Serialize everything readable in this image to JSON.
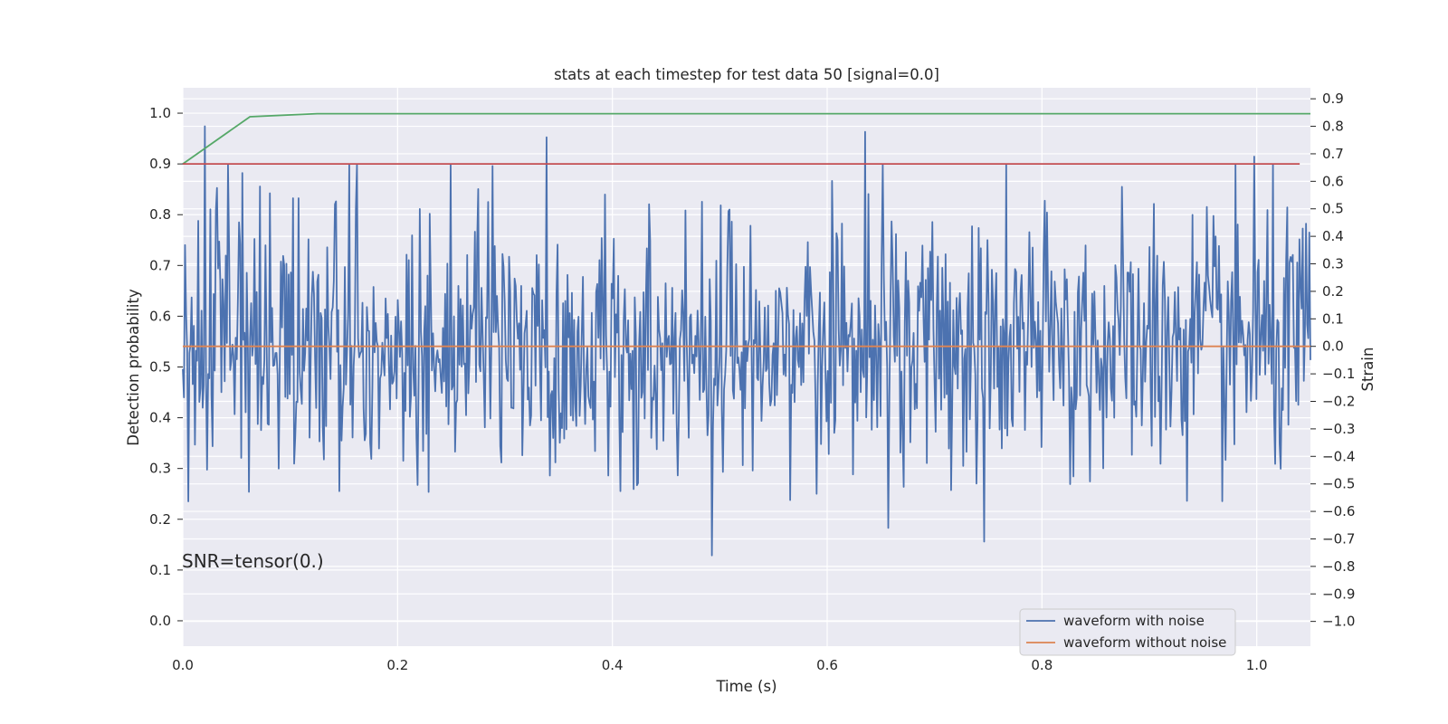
{
  "chart_data": {
    "type": "line",
    "title": "stats at each timestep for test data 50 [signal=0.0]",
    "xlabel": "Time (s)",
    "ylabel_left": "Detection probability",
    "ylabel_right": "Strain",
    "annotation": "SNR=tensor(0.)",
    "grid": true,
    "legend_position": "lower-right",
    "xlim": [
      0.0,
      1.05
    ],
    "ylim_left": [
      -0.05,
      1.05
    ],
    "ylim_right": [
      -1.09,
      0.94
    ],
    "x_ticks": [
      "0.0",
      "0.2",
      "0.4",
      "0.6",
      "0.8",
      "1.0"
    ],
    "y_ticks_left": [
      "0.0",
      "0.1",
      "0.2",
      "0.3",
      "0.4",
      "0.5",
      "0.6",
      "0.7",
      "0.8",
      "0.9",
      "1.0"
    ],
    "y_ticks_right": [
      "0.9",
      "0.8",
      "0.7",
      "0.6",
      "0.5",
      "0.4",
      "0.3",
      "0.2",
      "0.1",
      "0.0",
      "−0.1",
      "−0.2",
      "−0.3",
      "−0.4",
      "−0.5",
      "−0.6",
      "−0.7",
      "−0.8",
      "−0.9",
      "−1.0"
    ],
    "series": [
      {
        "name": "waveform with noise",
        "color": "#4c72b0",
        "axis": "right",
        "x_range": [
          0.0,
          1.05
        ],
        "n_points": 1024,
        "values_highlights": [
          {
            "x": 0.021,
            "y": 0.8
          },
          {
            "x": 0.339,
            "y": 0.76
          },
          {
            "x": 0.493,
            "y": -0.76
          },
          {
            "x": 0.635,
            "y": 0.78
          },
          {
            "x": 0.746,
            "y": -0.71
          },
          {
            "x": 0.998,
            "y": 0.69
          }
        ],
        "amplitude_std": 0.24
      },
      {
        "name": "waveform without noise",
        "color": "#dd8452",
        "axis": "right",
        "x": [
          0.0,
          1.05
        ],
        "y": [
          0.0,
          0.0
        ]
      },
      {
        "color": "#55a868",
        "axis": "left",
        "x": [
          0.0,
          0.0625,
          0.125,
          1.05
        ],
        "y": [
          0.9,
          0.993,
          0.999,
          0.999
        ]
      },
      {
        "color": "#c44e52",
        "axis": "left",
        "x": [
          0.0,
          1.04
        ],
        "y": [
          0.9,
          0.9
        ]
      }
    ]
  },
  "colors": {
    "plot_background": "#eaeaf2",
    "grid": "#ffffff"
  }
}
